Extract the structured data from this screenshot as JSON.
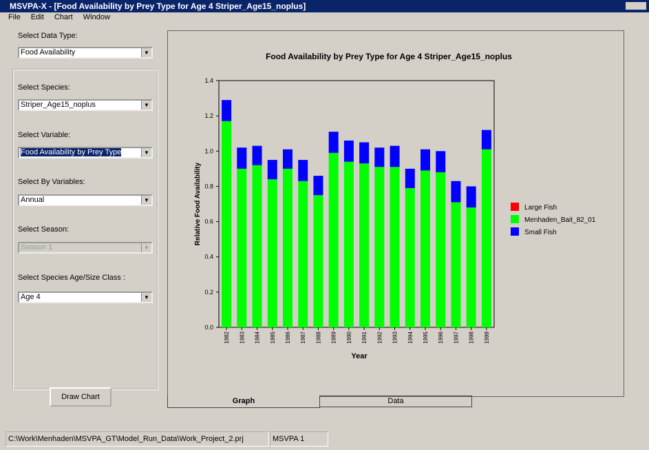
{
  "window": {
    "title": "MSVPA-X - [Food Availability by Prey Type for Age 4 Striper_Age15_noplus]"
  },
  "menu": [
    "File",
    "Edit",
    "Chart",
    "Window"
  ],
  "panel": {
    "data_type_label": "Select Data Type:",
    "data_type": "Food Availability",
    "species_label": "Select Species:",
    "species": "Striper_Age15_noplus",
    "variable_label": "Select Variable:",
    "variable": "Food Availability by Prey Type",
    "by_label": "Select By Variables:",
    "by": "Annual",
    "season_label": "Select Season:",
    "season": "Season 1",
    "age_label": "Select Species Age/Size Class :",
    "age": "Age 4",
    "button": "Draw Chart"
  },
  "tabs": [
    "Graph",
    "Data"
  ],
  "status": [
    "C:\\Work\\Menhaden\\MSVPA_GT\\Model_Run_Data\\Work_Project_2.prj",
    "MSVPA 1"
  ],
  "chart_data": {
    "type": "stacked_bar",
    "title": "Food Availability by Prey Type for Age 4 Striper_Age15_noplus",
    "xlabel": "Year",
    "ylabel": "Relative Food Availability",
    "categories": [
      "1982",
      "1983",
      "1984",
      "1985",
      "1986",
      "1987",
      "1988",
      "1989",
      "1990",
      "1991",
      "1992",
      "1993",
      "1994",
      "1995",
      "1996",
      "1997",
      "1998",
      "1999"
    ],
    "series": [
      {
        "name": "Large Fish",
        "color": "#ff0000",
        "values": [
          0,
          0,
          0,
          0,
          0,
          0,
          0,
          0,
          0,
          0,
          0,
          0,
          0,
          0,
          0,
          0,
          0,
          0
        ]
      },
      {
        "name": "Menhaden_Bait_82_01",
        "color": "#00ff00",
        "values": [
          1.17,
          0.9,
          0.92,
          0.84,
          0.9,
          0.83,
          0.75,
          0.99,
          0.94,
          0.93,
          0.91,
          0.91,
          0.79,
          0.89,
          0.88,
          0.71,
          0.68,
          1.01
        ]
      },
      {
        "name": "Small Fish",
        "color": "#0000ff",
        "values": [
          0.12,
          0.12,
          0.11,
          0.11,
          0.11,
          0.12,
          0.11,
          0.12,
          0.12,
          0.12,
          0.11,
          0.12,
          0.11,
          0.12,
          0.12,
          0.12,
          0.12,
          0.11
        ]
      }
    ],
    "ylim": [
      0,
      1.4
    ],
    "yticks": [
      {
        "value": 0,
        "label": "0.0"
      },
      0.2,
      0.4,
      0.6,
      0.8,
      {
        "value": 1,
        "label": "1.0"
      },
      1.2,
      1.4
    ],
    "legend": "right"
  }
}
